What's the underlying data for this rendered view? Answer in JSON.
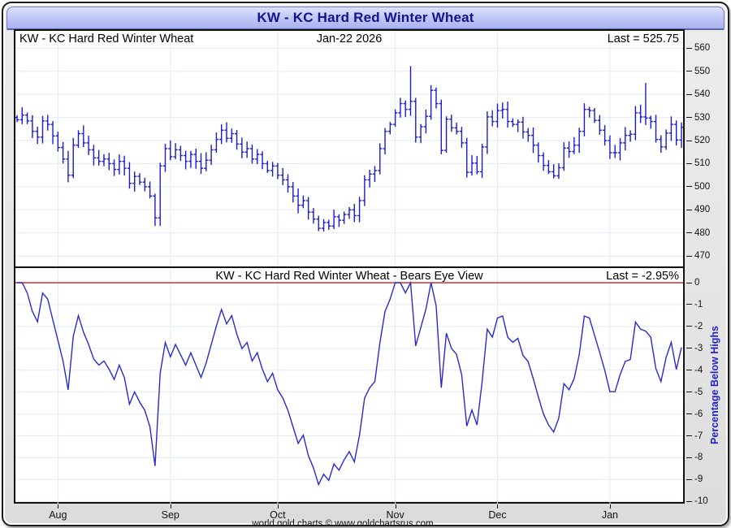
{
  "window": {
    "title": "KW  -  KC Hard Red Winter Wheat"
  },
  "top_panel": {
    "title_left": "KW  -  KC Hard Red Winter Wheat",
    "date_label": "Jan-22  2026",
    "last_label": "Last = 525.75"
  },
  "bottom_panel": {
    "title_center": "KW  -  KC Hard Red Winter Wheat - Bears Eye View",
    "last_label": "Last = -2.95%",
    "axis_title": "Percentage Below Highs"
  },
  "footer": "world gold charts © www.goldchartsrus.com",
  "colors": {
    "bar": "#1b1bc8",
    "line": "#2a2acc",
    "zero_line": "#cc1f1f",
    "grid": "#e2ecf7",
    "axis_text": "#111111",
    "accent_title": "#14148c",
    "axis_title_blue": "#2222cc"
  },
  "chart_data": [
    {
      "type": "ohlc",
      "title": "KW - KC Hard Red Winter Wheat",
      "last_close": 525.75,
      "date_of_last": "Jan-22 2026",
      "ylim": [
        465.5,
        567.5
      ],
      "yticks": [
        560,
        550,
        540,
        530,
        520,
        510,
        500,
        490,
        480,
        470
      ],
      "grid": true,
      "closes": [
        529,
        531,
        528.5,
        524,
        521.5,
        528.5,
        527,
        522,
        517,
        512,
        505,
        518,
        523,
        519,
        516,
        512.5,
        511,
        512,
        510,
        507.5,
        511,
        508,
        501.5,
        504.5,
        502,
        500,
        496,
        486.5,
        509,
        516.5,
        513,
        516,
        513.5,
        511,
        514,
        511,
        508,
        511.5,
        516,
        520.5,
        524.5,
        521,
        523,
        518.5,
        515,
        516.5,
        512,
        514,
        510,
        507,
        509,
        505,
        503,
        500,
        496,
        492,
        494,
        489,
        486,
        482,
        484.5,
        483,
        487,
        485.5,
        488,
        490,
        487.5,
        494,
        503,
        505.5,
        507,
        516.5,
        524,
        527,
        532,
        536,
        533.5,
        537,
        521.5,
        526,
        530.5,
        541.75,
        536,
        515.75,
        529.25,
        525.5,
        524,
        519,
        506.25,
        510.25,
        506.5,
        517.25,
        530.25,
        528.25,
        533,
        533.5,
        528.25,
        527,
        528,
        523.75,
        522.25,
        518,
        513.5,
        509.25,
        506.5,
        504.75,
        508.25,
        516.75,
        515.25,
        518,
        524,
        533.5,
        533,
        528.75,
        524.5,
        520,
        514.75,
        514.75,
        519,
        522.25,
        522.75,
        532,
        530.25,
        529.75,
        528.25,
        520.5,
        517.25,
        523.25,
        527,
        520.25,
        525.75
      ],
      "high_overrides": {
        "77": 552.25,
        "81": 544,
        "123": 545
      },
      "open_rule": "open equals previous close",
      "x_months": {
        "labels": [
          "Aug",
          "Sep",
          "Oct",
          "Nov",
          "Dec",
          "Jan"
        ],
        "start_indices": [
          8,
          30,
          51,
          74,
          94,
          116
        ]
      }
    },
    {
      "type": "line",
      "title": "KW - KC Hard Red Winter Wheat - Bears Eye View",
      "ylabel": "Percentage Below Highs",
      "last_value": -2.95,
      "ylim": [
        -10.1,
        0.67
      ],
      "yticks": [
        0,
        -1,
        -2,
        -3,
        -4,
        -5,
        -6,
        -7,
        -8,
        -9,
        -10
      ],
      "grid": true,
      "zero_reference_line": 0,
      "derivation": "percent below running maximum of closes from ohlc panel: 100*(close/runmax-1)"
    }
  ]
}
